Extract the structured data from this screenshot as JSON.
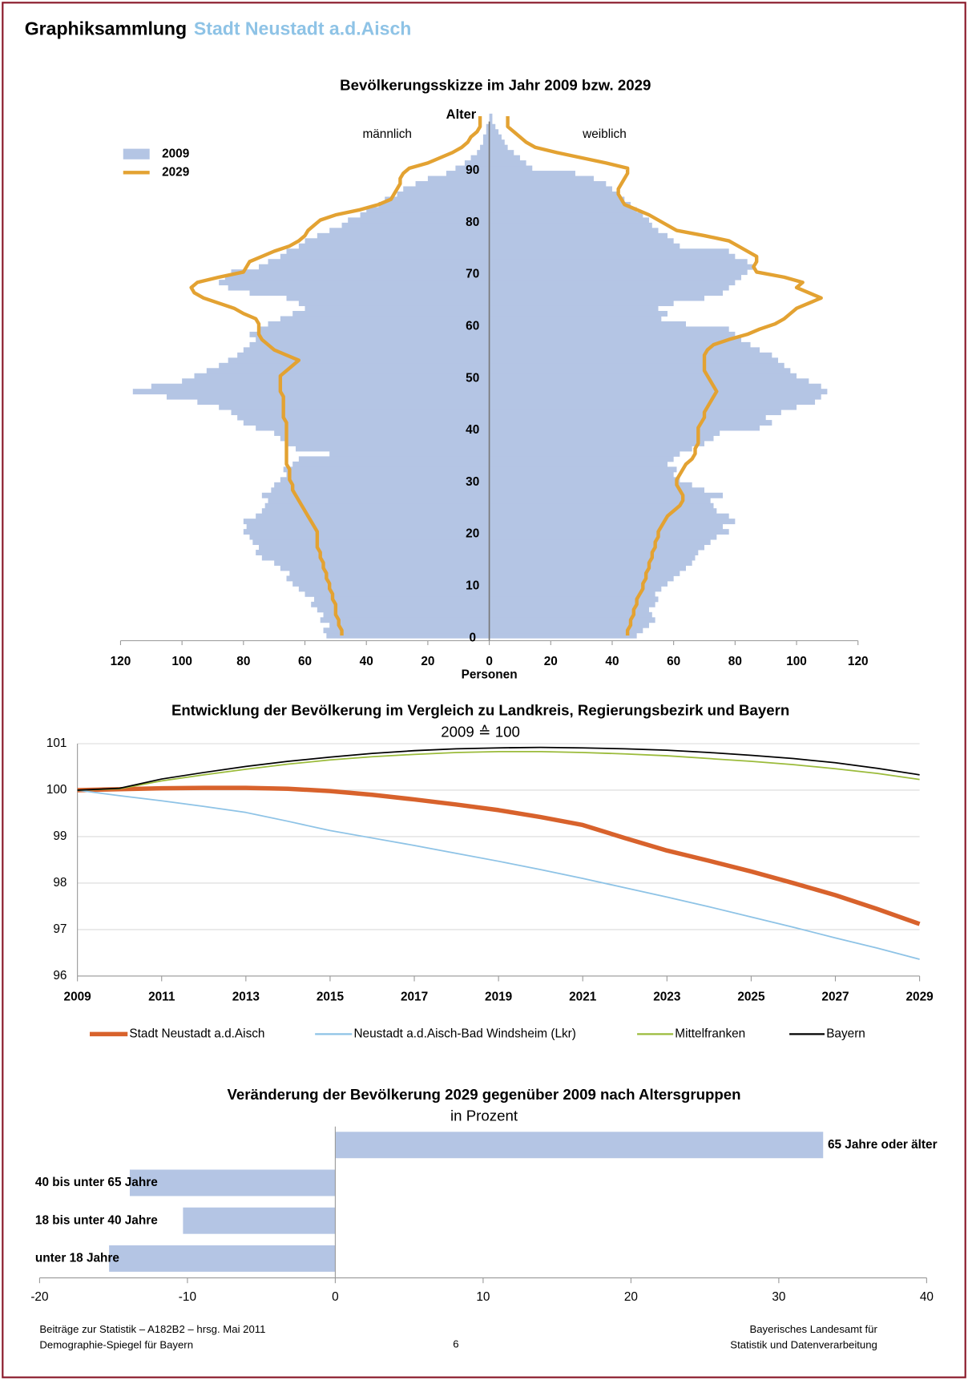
{
  "header": {
    "title": "Graphiksammlung",
    "subtitle": "Stadt Neustadt a.d.Aisch"
  },
  "chart_data": [
    {
      "type": "pyramid",
      "title": "Bevölkerungsskizze im Jahr 2009 bzw. 2029",
      "y_label": "Alter",
      "x_label": "Personen",
      "left_label": "männlich",
      "right_label": "weiblich",
      "y": [
        0,
        1,
        2,
        3,
        4,
        5,
        6,
        7,
        8,
        9,
        10,
        11,
        12,
        13,
        14,
        15,
        16,
        17,
        18,
        19,
        20,
        21,
        22,
        23,
        24,
        25,
        26,
        27,
        28,
        29,
        30,
        31,
        32,
        33,
        34,
        35,
        36,
        37,
        38,
        39,
        40,
        41,
        42,
        43,
        44,
        45,
        46,
        47,
        48,
        49,
        50,
        51,
        52,
        53,
        54,
        55,
        56,
        57,
        58,
        59,
        60,
        61,
        62,
        63,
        64,
        65,
        66,
        67,
        68,
        69,
        70,
        71,
        72,
        73,
        74,
        75,
        76,
        77,
        78,
        79,
        80,
        81,
        82,
        83,
        84,
        85,
        86,
        87,
        88,
        89,
        90,
        91,
        92,
        93,
        94,
        95,
        96,
        97,
        98,
        99,
        100
      ],
      "ylim": [
        0,
        100
      ],
      "yticks": [
        0,
        10,
        20,
        30,
        40,
        50,
        60,
        70,
        80,
        90
      ],
      "xlim": [
        0,
        120
      ],
      "xticks": [
        0,
        20,
        40,
        60,
        80,
        100,
        120
      ],
      "series": [
        {
          "name": "2009",
          "color": "#b4c5e4",
          "style": "bar",
          "male": [
            53,
            54,
            52,
            55,
            54,
            56,
            58,
            57,
            60,
            62,
            64,
            66,
            65,
            68,
            70,
            74,
            76,
            75,
            77,
            78,
            80,
            79,
            80,
            76,
            74,
            73,
            72,
            74,
            71,
            70,
            68,
            66,
            67,
            64,
            62,
            52,
            63,
            66,
            68,
            70,
            76,
            80,
            82,
            84,
            88,
            95,
            105,
            116,
            110,
            100,
            96,
            92,
            88,
            85,
            82,
            80,
            78,
            76,
            78,
            75,
            72,
            68,
            64,
            60,
            62,
            66,
            78,
            85,
            88,
            86,
            84,
            75,
            72,
            68,
            66,
            62,
            60,
            56,
            52,
            48,
            46,
            42,
            40,
            36,
            34,
            30,
            28,
            24,
            20,
            14,
            11,
            8,
            6,
            4,
            3,
            2,
            2,
            1,
            1,
            0,
            0
          ],
          "female": [
            48,
            50,
            52,
            54,
            53,
            52,
            54,
            55,
            54,
            56,
            58,
            60,
            62,
            64,
            66,
            67,
            68,
            70,
            72,
            74,
            78,
            76,
            80,
            78,
            74,
            73,
            72,
            76,
            70,
            66,
            62,
            60,
            61,
            58,
            60,
            62,
            66,
            70,
            73,
            75,
            88,
            92,
            90,
            95,
            100,
            106,
            108,
            110,
            108,
            104,
            100,
            98,
            96,
            94,
            92,
            88,
            85,
            82,
            80,
            78,
            64,
            56,
            58,
            55,
            60,
            70,
            76,
            78,
            80,
            82,
            84,
            86,
            84,
            80,
            78,
            62,
            60,
            58,
            55,
            53,
            52,
            50,
            48,
            46,
            44,
            42,
            40,
            38,
            34,
            28,
            14,
            12,
            10,
            8,
            6,
            5,
            4,
            3,
            2,
            1,
            1
          ]
        },
        {
          "name": "2029",
          "color": "#e3a232",
          "style": "line",
          "male": [
            48,
            48,
            49,
            49,
            50,
            50,
            50,
            51,
            51,
            52,
            52,
            53,
            53,
            54,
            54,
            55,
            55,
            56,
            56,
            56,
            56,
            57,
            58,
            59,
            60,
            61,
            62,
            63,
            64,
            64,
            65,
            65,
            65,
            66,
            66,
            66,
            66,
            66,
            66,
            66,
            66,
            66,
            67,
            67,
            67,
            67,
            67,
            68,
            68,
            68,
            68,
            66,
            64,
            62,
            66,
            70,
            72,
            74,
            75,
            75,
            75,
            76,
            80,
            83,
            88,
            93,
            96,
            97,
            95,
            88,
            80,
            79,
            78,
            74,
            70,
            65,
            62,
            60,
            59,
            57,
            55,
            50,
            42,
            36,
            32,
            31,
            30,
            29,
            29,
            28,
            26,
            20,
            16,
            12,
            9,
            7,
            6,
            4,
            3,
            3,
            3
          ],
          "female": [
            45,
            45,
            46,
            46,
            47,
            47,
            48,
            48,
            49,
            50,
            50,
            51,
            51,
            52,
            52,
            53,
            53,
            54,
            54,
            55,
            55,
            56,
            57,
            58,
            60,
            62,
            63,
            63,
            62,
            61,
            61,
            62,
            63,
            64,
            66,
            67,
            67,
            68,
            68,
            68,
            68,
            69,
            70,
            70,
            71,
            72,
            73,
            74,
            73,
            72,
            71,
            70,
            70,
            70,
            70,
            71,
            73,
            78,
            84,
            88,
            93,
            96,
            98,
            100,
            104,
            108,
            104,
            100,
            102,
            96,
            87,
            86,
            87,
            87,
            84,
            81,
            78,
            70,
            61,
            58,
            55,
            52,
            48,
            44,
            43,
            42,
            42,
            43,
            44,
            45,
            45,
            38,
            30,
            22,
            15,
            12,
            10,
            8,
            6,
            6,
            6
          ]
        }
      ]
    },
    {
      "type": "line",
      "title": "Entwicklung der Bevölkerung im Vergleich zu Landkreis, Regierungsbezirk und Bayern",
      "subtitle": "2009 ≙ 100",
      "x": [
        2009,
        2010,
        2011,
        2012,
        2013,
        2014,
        2015,
        2016,
        2017,
        2018,
        2019,
        2020,
        2021,
        2022,
        2023,
        2024,
        2025,
        2026,
        2027,
        2028,
        2029
      ],
      "xlim": [
        2009,
        2029
      ],
      "xticks": [
        2009,
        2011,
        2013,
        2015,
        2017,
        2019,
        2021,
        2023,
        2025,
        2027,
        2029
      ],
      "ylim": [
        96,
        101
      ],
      "yticks": [
        96,
        97,
        98,
        99,
        100,
        101
      ],
      "grid": true,
      "series": [
        {
          "name": "Stadt Neustadt a.d.Aisch",
          "color": "#d8622c",
          "values": [
            100,
            100.02,
            100.04,
            100.05,
            100.05,
            100.03,
            99.98,
            99.9,
            99.8,
            99.69,
            99.57,
            99.42,
            99.25,
            98.97,
            98.7,
            98.48,
            98.25,
            98.0,
            97.74,
            97.44,
            97.12
          ]
        },
        {
          "name": "Neustadt a.d.Aisch-Bad Windsheim (Lkr)",
          "color": "#8ec3e6",
          "values": [
            100,
            99.88,
            99.77,
            99.65,
            99.52,
            99.33,
            99.13,
            98.97,
            98.81,
            98.64,
            98.47,
            98.29,
            98.1,
            97.9,
            97.7,
            97.49,
            97.27,
            97.05,
            96.82,
            96.6,
            96.36
          ]
        },
        {
          "name": "Mittelfranken",
          "color": "#9bbb3b",
          "values": [
            100,
            100.03,
            100.2,
            100.33,
            100.45,
            100.56,
            100.65,
            100.72,
            100.77,
            100.81,
            100.83,
            100.83,
            100.81,
            100.78,
            100.74,
            100.68,
            100.62,
            100.55,
            100.46,
            100.36,
            100.23
          ]
        },
        {
          "name": "Bayern",
          "color": "#000000",
          "values": [
            100,
            100.04,
            100.24,
            100.38,
            100.51,
            100.62,
            100.71,
            100.79,
            100.85,
            100.89,
            100.91,
            100.92,
            100.91,
            100.89,
            100.86,
            100.81,
            100.75,
            100.68,
            100.59,
            100.47,
            100.33
          ]
        }
      ]
    },
    {
      "type": "hbar",
      "title": "Veränderung der Bevölkerung 2029 gegenüber 2009 nach Altersgruppen",
      "subtitle": "in Prozent",
      "categories": [
        "65 Jahre oder älter",
        "40 bis unter 65 Jahre",
        "18 bis unter 40 Jahre",
        "unter 18 Jahre"
      ],
      "values": [
        33.0,
        -13.9,
        -10.3,
        -15.3
      ],
      "color": "#b4c5e4",
      "xlim": [
        -20,
        40
      ],
      "xticks": [
        -20,
        -10,
        0,
        10,
        20,
        30,
        40
      ]
    }
  ],
  "footer": {
    "left": [
      "Beiträge zur Statistik – A182B2 – hrsg. Mai 2011",
      "Demographie-Spiegel für Bayern"
    ],
    "page": "6",
    "right": [
      "Bayerisches Landesamt für",
      "Statistik und Datenverarbeitung"
    ]
  }
}
